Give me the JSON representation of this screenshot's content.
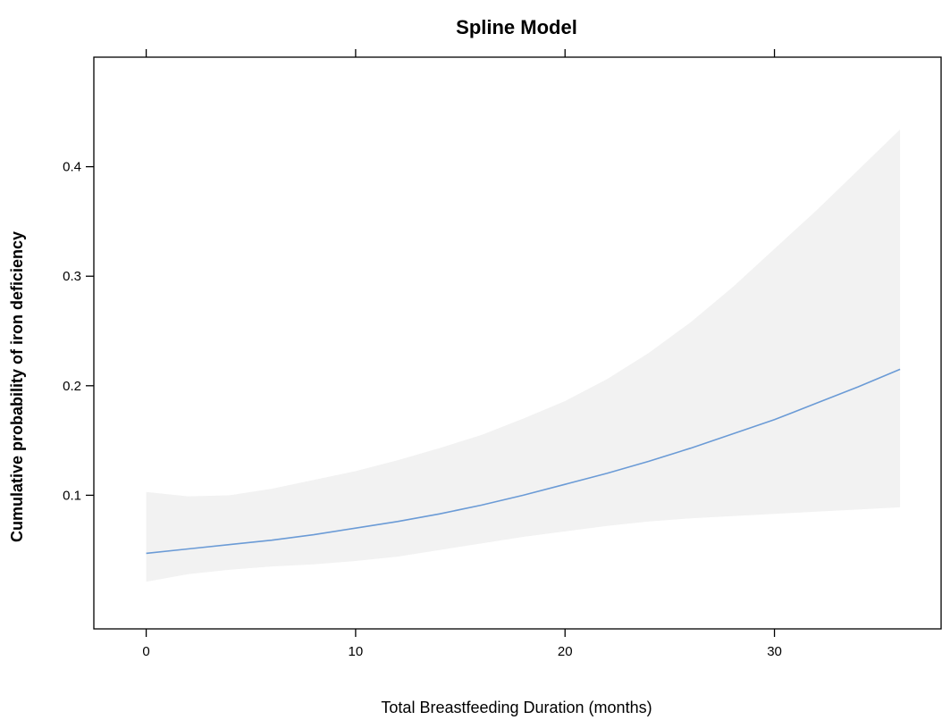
{
  "chart_data": {
    "type": "line",
    "title": "Spline Model",
    "xlabel": "Total Breastfeeding Duration (months)",
    "ylabel": "Cumulative probability of iron deficiency",
    "xlim": [
      -2.5,
      38
    ],
    "ylim": [
      -0.022,
      0.5
    ],
    "x_ticks": [
      0,
      10,
      20,
      30
    ],
    "x_tick_labels": [
      "0",
      "10",
      "20",
      "30"
    ],
    "y_ticks": [
      0.1,
      0.2,
      0.3,
      0.4
    ],
    "y_tick_labels": [
      "0.1",
      "0.2",
      "0.3",
      "0.4"
    ],
    "grid": false,
    "line_color": "#6b9bd6",
    "band_color": "#f2f2f2",
    "series": [
      {
        "x": [
          0,
          2,
          4,
          6,
          8,
          10,
          12,
          14,
          16,
          18,
          20,
          22,
          24,
          26,
          28,
          30,
          32,
          34,
          36
        ],
        "estimate": [
          0.047,
          0.051,
          0.055,
          0.059,
          0.064,
          0.07,
          0.076,
          0.083,
          0.091,
          0.1,
          0.11,
          0.12,
          0.131,
          0.143,
          0.156,
          0.169,
          0.184,
          0.199,
          0.215
        ],
        "lower": [
          0.021,
          0.028,
          0.032,
          0.035,
          0.037,
          0.04,
          0.044,
          0.05,
          0.056,
          0.062,
          0.067,
          0.072,
          0.076,
          0.079,
          0.081,
          0.083,
          0.085,
          0.087,
          0.089
        ],
        "upper": [
          0.103,
          0.099,
          0.1,
          0.106,
          0.114,
          0.122,
          0.132,
          0.143,
          0.155,
          0.17,
          0.186,
          0.206,
          0.23,
          0.258,
          0.29,
          0.325,
          0.36,
          0.397,
          0.434
        ]
      }
    ]
  }
}
